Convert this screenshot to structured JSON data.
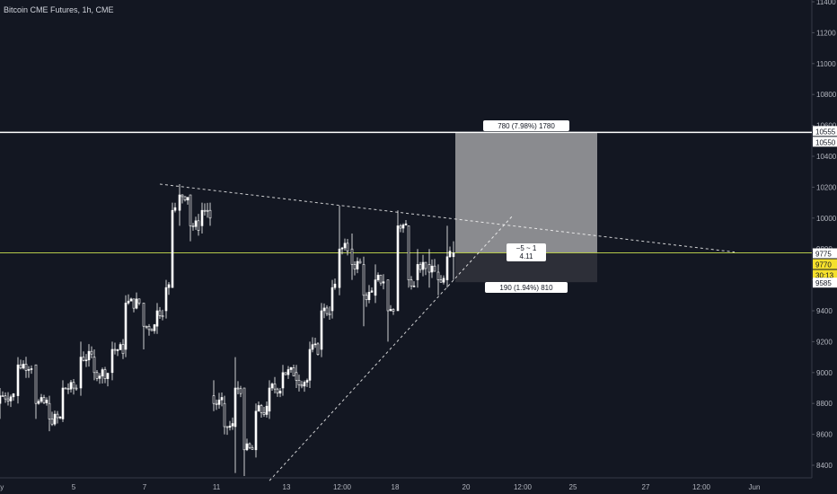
{
  "header": {
    "title": "Bitcoin CME Futures, 1h, CME"
  },
  "chart_data": {
    "type": "candlestick",
    "title": "Bitcoin CME Futures, 1h, CME",
    "symbol": "Bitcoin CME Futures",
    "interval": "1h",
    "exchange": "CME",
    "ylim": [
      8300,
      11500
    ],
    "y_ticks": [
      8400,
      8600,
      8800,
      9000,
      9200,
      9400,
      9600,
      9800,
      10000,
      10200,
      10400,
      10600,
      10800,
      11000,
      11200,
      11400
    ],
    "x_ticks": [
      {
        "label": "ay",
        "pos": 0
      },
      {
        "label": "5",
        "pos": 82
      },
      {
        "label": "7",
        "pos": 161
      },
      {
        "label": "11",
        "pos": 241
      },
      {
        "label": "13",
        "pos": 319
      },
      {
        "label": "12:00",
        "pos": 381
      },
      {
        "label": "18",
        "pos": 440
      },
      {
        "label": "20",
        "pos": 519
      },
      {
        "label": "12:00",
        "pos": 582
      },
      {
        "label": "25",
        "pos": 638
      },
      {
        "label": "27",
        "pos": 719
      },
      {
        "label": "12:00",
        "pos": 781
      },
      {
        "label": "Jun",
        "pos": 840
      }
    ],
    "series": [
      {
        "type": "candles",
        "points": [
          [
            0,
            8800,
            8900,
            8700,
            8850
          ],
          [
            20,
            8850,
            9100,
            8800,
            9050
          ],
          [
            40,
            9050,
            9050,
            8700,
            8800
          ],
          [
            55,
            8800,
            8850,
            8620,
            8700
          ],
          [
            70,
            8700,
            8950,
            8680,
            8900
          ],
          [
            90,
            8900,
            9200,
            8850,
            9100
          ],
          [
            105,
            9100,
            9150,
            8950,
            9000
          ],
          [
            125,
            9000,
            9200,
            8950,
            9150
          ],
          [
            140,
            9150,
            9500,
            9100,
            9450
          ],
          [
            160,
            9450,
            9450,
            9150,
            9300
          ],
          [
            175,
            9300,
            9450,
            9250,
            9400
          ],
          [
            185,
            9400,
            9600,
            9350,
            9550
          ],
          [
            192,
            9550,
            10100,
            9550,
            10050
          ],
          [
            200,
            10050,
            10220,
            9950,
            10150
          ],
          [
            212,
            10150,
            10150,
            9850,
            9950
          ],
          [
            225,
            9950,
            10100,
            9900,
            10050
          ],
          [
            234,
            10050,
            10100,
            9950,
            10000
          ],
          [
            238,
            8850,
            8950,
            8750,
            8800
          ],
          [
            250,
            8800,
            8850,
            8600,
            8650
          ],
          [
            262,
            8650,
            9100,
            8350,
            8900
          ],
          [
            272,
            8900,
            8900,
            8330,
            8500
          ],
          [
            285,
            8500,
            8800,
            8450,
            8750
          ],
          [
            300,
            8750,
            8950,
            8700,
            8900
          ],
          [
            315,
            8900,
            9050,
            8850,
            9000
          ],
          [
            330,
            9000,
            9050,
            8900,
            8950
          ],
          [
            345,
            8950,
            9200,
            8900,
            9150
          ],
          [
            358,
            9150,
            9450,
            9100,
            9400
          ],
          [
            370,
            9400,
            9600,
            9350,
            9550
          ],
          [
            378,
            9550,
            10080,
            9500,
            9800
          ],
          [
            392,
            9800,
            9900,
            9600,
            9700
          ],
          [
            405,
            9700,
            9750,
            9300,
            9500
          ],
          [
            418,
            9500,
            9700,
            9450,
            9600
          ],
          [
            432,
            9600,
            9600,
            9200,
            9400
          ],
          [
            443,
            9400,
            10050,
            9400,
            9950
          ],
          [
            455,
            9950,
            9950,
            9550,
            9600
          ],
          [
            465,
            9600,
            9800,
            9550,
            9700
          ],
          [
            478,
            9700,
            9800,
            9550,
            9650
          ],
          [
            488,
            9650,
            9700,
            9500,
            9600
          ],
          [
            498,
            9600,
            9950,
            9550,
            9750
          ],
          [
            505,
            9750,
            9850,
            9600,
            9775
          ]
        ]
      }
    ],
    "lines": {
      "resistance_level": 10555,
      "last_price": 9775,
      "descending_trendline": [
        [
          178,
          10220
        ],
        [
          818,
          9780
        ]
      ],
      "ascending_trendline": [
        [
          300,
          8300
        ],
        [
          570,
          10010
        ]
      ]
    },
    "position": {
      "entry": 9775,
      "target": 10555,
      "stop": 9585,
      "x_range": [
        507,
        665
      ],
      "target_label": "780 (7.98%) 1780",
      "stop_label": "190 (1.94%) 810",
      "ratio_label_top": "−5 ~ 1",
      "ratio_label_bottom": "4.11"
    },
    "price_labels": [
      {
        "value": "10555",
        "color": "#ffffff",
        "text_color": "#131722"
      },
      {
        "value": "10550",
        "color": "#ffffff",
        "text_color": "#131722"
      },
      {
        "value": "9775",
        "color": "#ffffff",
        "text_color": "#131722"
      },
      {
        "value": "9770",
        "color": "#f5e02c",
        "text_color": "#131722"
      },
      {
        "value": "30:13",
        "color": "#f5e02c",
        "text_color": "#131722"
      },
      {
        "value": "9585",
        "color": "#ffffff",
        "text_color": "#131722"
      }
    ],
    "colors": {
      "background": "#131722",
      "candle": "#ffffff",
      "last_price_line": "#b5c94a",
      "target_zone": "#8a8b8f",
      "stop_zone": "#2d2f38"
    }
  }
}
